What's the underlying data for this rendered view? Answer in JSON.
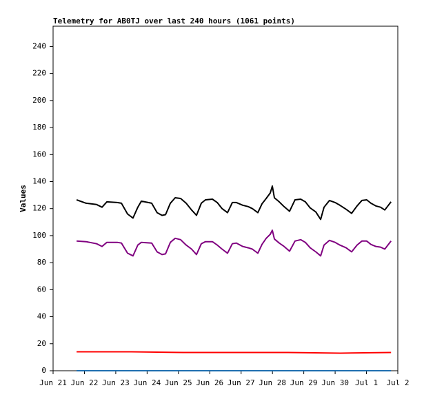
{
  "chart_data": {
    "type": "line",
    "title": "Telemetry for AB0TJ over last 240 hours (1061 points)",
    "y_label": "Values",
    "xlim": [
      0,
      264
    ],
    "xticks": [
      {
        "value": 0,
        "label": "Jun 21"
      },
      {
        "value": 24,
        "label": "Jun 22"
      },
      {
        "value": 48,
        "label": "Jun 23"
      },
      {
        "value": 72,
        "label": "Jun 24"
      },
      {
        "value": 96,
        "label": "Jun 25"
      },
      {
        "value": 120,
        "label": "Jun 26"
      },
      {
        "value": 144,
        "label": "Jun 27"
      },
      {
        "value": 168,
        "label": "Jun 28"
      },
      {
        "value": 192,
        "label": "Jun 29"
      },
      {
        "value": 216,
        "label": "Jun 30"
      },
      {
        "value": 240,
        "label": "Jul 1"
      },
      {
        "value": 264,
        "label": "Jul 2"
      }
    ],
    "ylim": [
      0,
      255
    ],
    "yticks": [
      0,
      20,
      40,
      60,
      80,
      100,
      120,
      140,
      160,
      180,
      200,
      220,
      240
    ],
    "series": [
      {
        "color": "#000000",
        "x": [
          18,
          25.3,
          33.3,
          37.5,
          41.2,
          49.1,
          52.3,
          57,
          61.2,
          64.9,
          67.6,
          75.5,
          79.7,
          83.4,
          86.1,
          89.8,
          93.5,
          97.7,
          101.9,
          106.1,
          109.8,
          113.5,
          116.7,
          122,
          125.7,
          129.4,
          133.6,
          137.3,
          140.4,
          145.2,
          149.4,
          152.6,
          156.8,
          160,
          163.2,
          166.3,
          167.9,
          169.5,
          173.2,
          176.9,
          181.1,
          185.3,
          189.6,
          193.2,
          196.9,
          201.2,
          204.9,
          207.5,
          211.7,
          216,
          219.6,
          224.4,
          228.6,
          232.8,
          236.5,
          240.2,
          243.4,
          247.1,
          250.8,
          254,
          258.8
        ],
        "values": [
          126.5,
          124,
          123,
          121,
          125,
          124.5,
          124,
          116,
          113,
          121,
          125.5,
          124,
          117,
          115,
          115.5,
          124,
          128,
          127.5,
          124,
          119,
          115,
          124,
          126.5,
          127,
          124.5,
          120,
          117,
          124.5,
          124.5,
          122.5,
          121.5,
          120,
          117,
          123.5,
          127.5,
          131.6,
          136.7,
          128,
          125,
          121.5,
          118,
          126.5,
          127,
          125,
          120.5,
          117.5,
          112,
          121,
          126,
          124.5,
          122.5,
          119.5,
          116.5,
          122,
          126,
          126.5,
          124,
          122,
          121,
          119,
          125
        ]
      },
      {
        "color": "#800080",
        "x": [
          18,
          25.3,
          33.3,
          37.5,
          41.2,
          49.1,
          52.3,
          57,
          61.2,
          64.9,
          67.6,
          75.5,
          79.7,
          83.4,
          86.1,
          89.8,
          93.5,
          97.7,
          101.9,
          106.1,
          109.8,
          113.5,
          116.7,
          122,
          125.7,
          129.4,
          133.6,
          137.3,
          140.4,
          145.2,
          149.4,
          152.6,
          156.8,
          160,
          163.2,
          166.3,
          167.9,
          169.5,
          173.2,
          176.9,
          181.1,
          185.3,
          189.6,
          193.2,
          196.9,
          201.2,
          204.9,
          207.5,
          211.7,
          216,
          219.6,
          224.4,
          228.6,
          232.8,
          236.5,
          240.2,
          243.4,
          247.1,
          250.8,
          254,
          258.8
        ],
        "values": [
          96,
          95.5,
          94,
          92,
          95,
          95,
          94.5,
          87,
          85,
          93,
          95,
          94.5,
          88,
          86,
          86.5,
          95,
          98,
          97,
          93,
          90,
          86,
          94,
          95.5,
          95.5,
          93,
          90,
          87,
          94,
          94.5,
          92,
          91,
          90,
          87,
          93.5,
          98,
          101,
          104,
          97.5,
          94.5,
          92,
          88.5,
          96,
          97,
          95,
          91,
          88,
          85,
          93,
          96.5,
          95,
          93,
          91,
          88,
          93,
          96,
          96,
          93.5,
          92,
          91.5,
          90,
          96
        ]
      },
      {
        "color": "#ff0000",
        "x": [
          18,
          60,
          100,
          140,
          180,
          220,
          258.8
        ],
        "values": [
          14,
          14,
          13.5,
          13.5,
          13.5,
          13,
          13.5
        ]
      },
      {
        "color": "#1f6fb0",
        "x": [
          18,
          258.8
        ],
        "values": [
          0,
          0
        ]
      }
    ]
  }
}
